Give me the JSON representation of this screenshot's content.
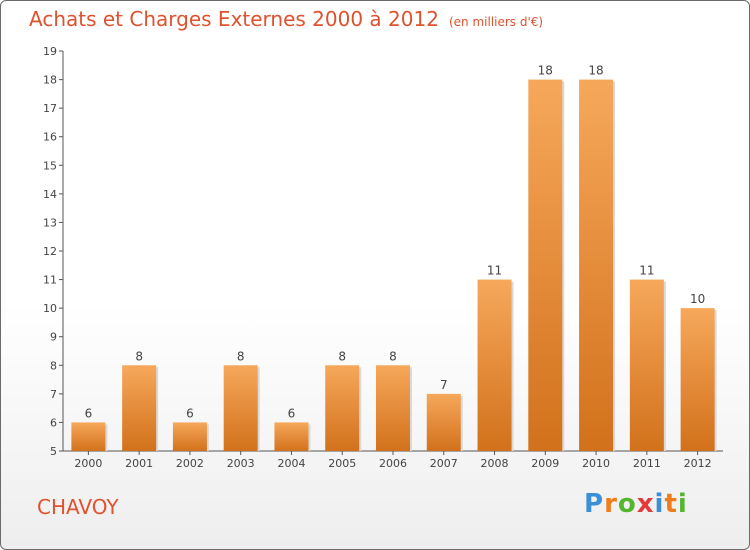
{
  "header": {
    "title": "Achats et Charges Externes 2000 à 2012",
    "subtitle": "(en milliers d'€)"
  },
  "footer": {
    "commune": "CHAVOY",
    "logo_text": "Proxiti"
  },
  "colors": {
    "title": "#e0522e",
    "bar_light": "#f6a85a",
    "bar_dark": "#d2711c",
    "axis": "#555555"
  },
  "chart_data": {
    "type": "bar",
    "title": "Achats et Charges Externes 2000 à 2012",
    "subtitle": "(en milliers d'€)",
    "categories": [
      "2000",
      "2001",
      "2002",
      "2003",
      "2004",
      "2005",
      "2006",
      "2007",
      "2008",
      "2009",
      "2010",
      "2011",
      "2012"
    ],
    "values": [
      6,
      8,
      6,
      8,
      6,
      8,
      8,
      7,
      11,
      18,
      18,
      11,
      10
    ],
    "ylim": [
      5,
      19
    ],
    "yticks": [
      5,
      6,
      7,
      8,
      9,
      10,
      11,
      12,
      13,
      14,
      15,
      16,
      17,
      18,
      19
    ],
    "xlabel": "",
    "ylabel": "",
    "grid": false,
    "legend": "none"
  }
}
